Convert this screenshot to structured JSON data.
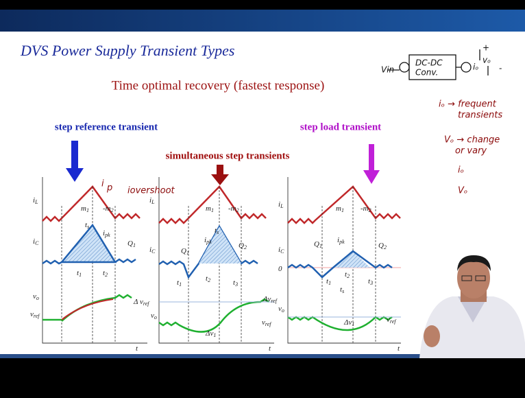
{
  "slide": {
    "title": "DVS Power Supply Transient Types",
    "subtitle": "Time optimal recovery (fastest response)"
  },
  "transients": [
    "step reference transient",
    "simultaneous step transients",
    "step load transient"
  ],
  "panels": [
    {
      "labels": [
        [
          "i",
          "L"
        ],
        [
          "m",
          "1"
        ],
        [
          "-m",
          "2"
        ],
        [
          "t",
          "s"
        ],
        [
          "i",
          "pk"
        ],
        [
          "i",
          "C"
        ],
        [
          "Q",
          "1"
        ],
        [
          "t",
          "1"
        ],
        [
          "t",
          "2"
        ],
        [
          "v",
          "o"
        ],
        [
          "v",
          "ref"
        ],
        [
          "Δ v",
          "ref"
        ],
        [
          "t",
          ""
        ]
      ]
    },
    {
      "labels": [
        [
          "i",
          "L"
        ],
        [
          "m",
          "1"
        ],
        [
          "-m",
          "2"
        ],
        [
          "t",
          "s"
        ],
        [
          "i",
          "pk"
        ],
        [
          "i",
          "C"
        ],
        [
          "Q",
          "1"
        ],
        [
          "Q",
          "2"
        ],
        [
          "t",
          "1"
        ],
        [
          "t",
          "2"
        ],
        [
          "t",
          "3"
        ],
        [
          "v",
          "o"
        ],
        [
          "Δv",
          "ref"
        ],
        [
          "v",
          "ref"
        ],
        [
          "Δv",
          "1"
        ],
        [
          "t",
          ""
        ]
      ]
    },
    {
      "labels": [
        [
          "i",
          "L"
        ],
        [
          "m",
          "1"
        ],
        [
          "-m",
          "2"
        ],
        [
          "i",
          "pk"
        ],
        [
          "i",
          "C"
        ],
        [
          "Q",
          "1"
        ],
        [
          "Q",
          "2"
        ],
        [
          "0",
          ""
        ],
        [
          "t",
          "1"
        ],
        [
          "t",
          "2"
        ],
        [
          "t",
          "3"
        ],
        [
          "t",
          "s"
        ],
        [
          "v",
          "o"
        ],
        [
          "Δv",
          "1"
        ],
        [
          "v",
          "ref"
        ],
        [
          "t",
          ""
        ]
      ]
    }
  ],
  "handwritten": [
    "i",
    "p",
    "iovershoot",
    "Vin",
    "DC-DC",
    "Conv.",
    "iₒ",
    "vₒ",
    "+",
    "-",
    "iₒ → frequent",
    "transients",
    "Vₒ → change",
    "or vary",
    "iₒ",
    "Vₒ"
  ]
}
